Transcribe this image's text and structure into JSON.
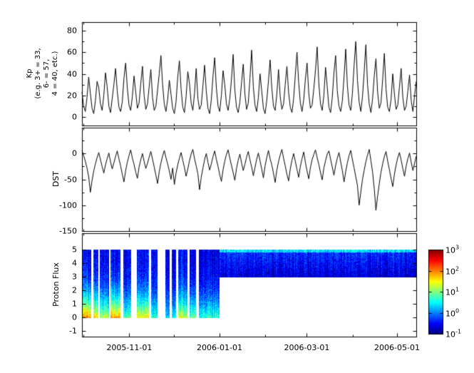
{
  "figure": {
    "background": "#ffffff",
    "frame_color": "#000000",
    "line_color": "#000000"
  },
  "x_axis": {
    "start_day": 0,
    "end_day": 226,
    "major_ticks": [
      {
        "day": 32,
        "label": "2005-11-01"
      },
      {
        "day": 93,
        "label": "2006-01-01"
      },
      {
        "day": 152,
        "label": "2006-03-01"
      },
      {
        "day": 213,
        "label": "2006-05-01"
      }
    ],
    "minor_tick_days": [
      1,
      62,
      124,
      183
    ]
  },
  "chart_data": [
    {
      "type": "line",
      "ylabel_lines": [
        "Kp",
        "(e.g. 3+ = 33,",
        "6- = 57,",
        "4 = 40, etc.)"
      ],
      "ylim": [
        -8,
        88
      ],
      "yticks": [
        0,
        20,
        40,
        60,
        80
      ],
      "yticks_minor": [
        10,
        30,
        50,
        70
      ],
      "x_range_days": [
        0,
        226
      ],
      "values": [
        23,
        10,
        5,
        18,
        37,
        22,
        8,
        3,
        15,
        33,
        27,
        12,
        6,
        20,
        41,
        28,
        10,
        4,
        17,
        30,
        45,
        24,
        9,
        5,
        14,
        36,
        50,
        27,
        11,
        6,
        19,
        38,
        23,
        8,
        13,
        31,
        47,
        20,
        7,
        12,
        28,
        44,
        18,
        6,
        10,
        25,
        40,
        57,
        30,
        12,
        5,
        16,
        34,
        21,
        8,
        3,
        14,
        37,
        52,
        26,
        9,
        4,
        19,
        42,
        31,
        13,
        6,
        22,
        45,
        17,
        7,
        11,
        29,
        48,
        24,
        8,
        3,
        16,
        38,
        55,
        27,
        10,
        5,
        20,
        43,
        30,
        12,
        6,
        17,
        35,
        58,
        25,
        9,
        4,
        14,
        32,
        49,
        21,
        7,
        13,
        36,
        62,
        28,
        11,
        5,
        18,
        40,
        24,
        8,
        3,
        15,
        33,
        53,
        27,
        10,
        6,
        21,
        44,
        19,
        7,
        12,
        30,
        47,
        23,
        9,
        4,
        17,
        39,
        60,
        32,
        13,
        5,
        16,
        35,
        50,
        22,
        8,
        11,
        26,
        43,
        65,
        31,
        12,
        6,
        20,
        46,
        28,
        9,
        4,
        18,
        41,
        57,
        24,
        10,
        5,
        15,
        37,
        63,
        29,
        11,
        6,
        22,
        48,
        70,
        34,
        14,
        5,
        19,
        42,
        67,
        30,
        12,
        4,
        17,
        38,
        54,
        23,
        8,
        13,
        35,
        59,
        26,
        9,
        5,
        16,
        40,
        21,
        7,
        11,
        28,
        45,
        18,
        6,
        10,
        24,
        39,
        15,
        5,
        20,
        33
      ]
    },
    {
      "type": "line",
      "ylabel_lines": [
        "DST"
      ],
      "ylim": [
        -150,
        50
      ],
      "yticks": [
        0,
        -50,
        -100,
        -150
      ],
      "yticks_minor": [
        25,
        -25,
        -75,
        -125
      ],
      "x_range_days": [
        0,
        226
      ],
      "values": [
        6,
        -4,
        -15,
        -28,
        -45,
        -75,
        -52,
        -34,
        -20,
        -8,
        2,
        -12,
        -25,
        -38,
        -22,
        -10,
        1,
        -16,
        -30,
        -18,
        -6,
        5,
        -10,
        -24,
        -40,
        -55,
        -33,
        -17,
        -4,
        7,
        -9,
        -21,
        -36,
        -48,
        -26,
        -12,
        0,
        -15,
        -29,
        -19,
        -7,
        4,
        -11,
        -26,
        -42,
        -58,
        -35,
        -18,
        -5,
        6,
        -8,
        -20,
        -34,
        -50,
        -28,
        -60,
        -38,
        -22,
        -9,
        2,
        -13,
        -27,
        -44,
        -30,
        -14,
        -1,
        8,
        -10,
        -24,
        -39,
        -70,
        -46,
        -28,
        -12,
        0,
        -17,
        -32,
        -20,
        -6,
        5,
        -11,
        -25,
        -41,
        -54,
        -31,
        -15,
        -2,
        7,
        -9,
        -23,
        -37,
        -52,
        -29,
        -13,
        -1,
        -18,
        -33,
        -21,
        -7,
        4,
        -12,
        -26,
        -43,
        -27,
        -11,
        1,
        -14,
        -30,
        -47,
        -24,
        -8,
        6,
        -10,
        -22,
        -38,
        -56,
        -32,
        -16,
        -3,
        8,
        -9,
        -24,
        -40,
        -53,
        -30,
        -13,
        0,
        -15,
        -31,
        -46,
        -25,
        -10,
        3,
        -17,
        -34,
        -49,
        -27,
        -12,
        -2,
        7,
        -8,
        -21,
        -37,
        -51,
        -28,
        -14,
        -1,
        5,
        -11,
        -26,
        -42,
        -23,
        -9,
        2,
        -16,
        -33,
        -55,
        -35,
        -18,
        -4,
        6,
        -12,
        -28,
        -45,
        -62,
        -100,
        -74,
        -50,
        -32,
        -16,
        -3,
        8,
        -14,
        -36,
        -68,
        -110,
        -82,
        -58,
        -36,
        -20,
        -6,
        4,
        -15,
        -31,
        -48,
        -64,
        -40,
        -22,
        -8,
        2,
        -13,
        -29,
        -44,
        -24,
        -10,
        1,
        -17,
        -33,
        -19,
        -5
      ]
    },
    {
      "type": "heatmap",
      "ylabel_lines": [
        "Proton Flux"
      ],
      "ylim": [
        -1.4,
        6.2
      ],
      "yticks": [
        -1,
        0,
        1,
        2,
        3,
        4,
        5
      ],
      "colormap": "jet",
      "segments": [
        {
          "t0": 0,
          "t1": 6,
          "y0": 0,
          "y1": 5,
          "log_top": -0.5,
          "log_bottom": 2.0,
          "p": 2.5
        },
        {
          "t0": 7.5,
          "t1": 11,
          "y0": 0,
          "y1": 5,
          "log_top": -0.5,
          "log_bottom": 1.6,
          "p": 2.5
        },
        {
          "t0": 12,
          "t1": 18,
          "y0": 0,
          "y1": 5,
          "log_top": -0.6,
          "log_bottom": 1.2,
          "p": 2.5
        },
        {
          "t0": 19,
          "t1": 26,
          "y0": 0,
          "y1": 5,
          "log_top": -0.5,
          "log_bottom": 1.9,
          "p": 2.5
        },
        {
          "t0": 27.5,
          "t1": 33,
          "y0": 0,
          "y1": 5,
          "log_top": -0.6,
          "log_bottom": 0.8,
          "p": 2.5
        },
        {
          "t0": 37,
          "t1": 45,
          "y0": 0,
          "y1": 5,
          "log_top": -0.5,
          "log_bottom": 1.5,
          "p": 2.5
        },
        {
          "t0": 46.5,
          "t1": 51,
          "y0": 0,
          "y1": 5,
          "log_top": -0.6,
          "log_bottom": 0.6,
          "p": 2.5
        },
        {
          "t0": 56,
          "t1": 59,
          "y0": 0,
          "y1": 5,
          "log_top": -0.6,
          "log_bottom": 0.4,
          "p": 2.5
        },
        {
          "t0": 60.5,
          "t1": 63.5,
          "y0": 0,
          "y1": 5,
          "log_top": -0.6,
          "log_bottom": 0.5,
          "p": 2.5
        },
        {
          "t0": 65,
          "t1": 71,
          "y0": 0,
          "y1": 5,
          "log_top": -0.5,
          "log_bottom": 1.3,
          "p": 2.5
        },
        {
          "t0": 72.5,
          "t1": 77,
          "y0": 0,
          "y1": 5,
          "log_top": -0.6,
          "log_bottom": 1.0,
          "p": 2.5
        },
        {
          "t0": 79,
          "t1": 93,
          "y0": 0,
          "y1": 5,
          "log_top": -0.6,
          "log_bottom": 0.7,
          "p": 2.5
        },
        {
          "t0": 93,
          "t1": 226,
          "y0": 3,
          "y1": 5,
          "log_top": -0.3,
          "log_bottom": -0.7,
          "p": 1
        },
        {
          "t0": 93,
          "t1": 226,
          "y0": 4.8,
          "y1": 5,
          "log_top": 0.35,
          "log_bottom": 0.35,
          "p": 1
        }
      ],
      "colorbar": {
        "base": "10",
        "log_min": -1,
        "log_max": 3,
        "ticks": [
          {
            "exp": "3",
            "log": 3
          },
          {
            "exp": "2",
            "log": 2
          },
          {
            "exp": "1",
            "log": 1
          },
          {
            "exp": "0",
            "log": 0
          },
          {
            "exp": "-1",
            "log": -1
          }
        ]
      }
    }
  ]
}
